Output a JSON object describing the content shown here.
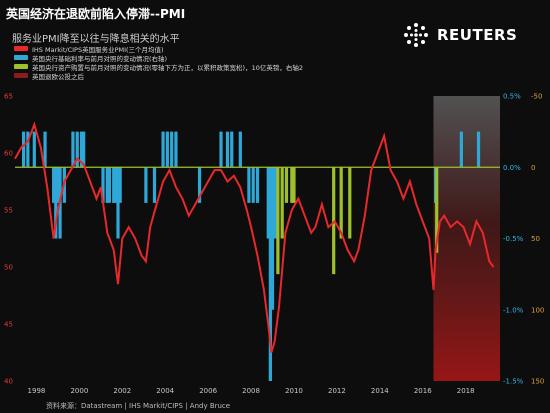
{
  "header": {
    "title": "英国经济在退欧前陷入停滞--PMI",
    "subtitle": "服务业PMI降至以往与降息相关的水平"
  },
  "brand": {
    "name": "REUTERS"
  },
  "legend": [
    {
      "label": "IHS Markit/CIPS英国服务业PMI(三个月均值)",
      "color": "#e8282b"
    },
    {
      "label": "英国央行基础利率与前月对照的变动情况(右轴)",
      "color": "#2fa8d8"
    },
    {
      "label": "英国央行资产购置与前月对照的变动情况(零轴下方为正，以累积政策宽松)，10亿英镑，右轴2",
      "color": "#9ec02a"
    },
    {
      "label": "英国退欧公投之后",
      "color": "#8a1c1c"
    }
  ],
  "source": "资料来源：Datastream | IHS Markit/CIPS | Andy Bruce",
  "chart_data": {
    "type": "line",
    "x_ticks": [
      "1998",
      "2000",
      "2002",
      "2004",
      "2006",
      "2008",
      "2010",
      "2012",
      "2014",
      "2016",
      "2018"
    ],
    "y_left_ticks": [
      "65",
      "60",
      "55",
      "50",
      "45",
      "40"
    ],
    "y_left_range": [
      40,
      65
    ],
    "y_right1_ticks": [
      "0.5%",
      "0.0%",
      "-0.5%",
      "-1.0%",
      "-1.5%"
    ],
    "y_right1_range": [
      -1.5,
      0.5
    ],
    "y_right2_ticks": [
      "-50",
      "0",
      "50",
      "100",
      "150"
    ],
    "y_right2_range": [
      -50,
      150
    ],
    "x_range": [
      1997,
      2019.6
    ],
    "shade_from": 2016.5,
    "series": [
      {
        "name": "IHS Markit/CIPS英国服务业PMI(三个月均值)",
        "axis": "left",
        "color": "#e8282b",
        "x": [
          1997.0,
          1997.3,
          1997.6,
          1997.9,
          1998.2,
          1998.5,
          1998.8,
          1999.0,
          1999.3,
          1999.6,
          1999.9,
          2000.2,
          2000.5,
          2000.8,
          2001.0,
          2001.3,
          2001.6,
          2001.8,
          2002.0,
          2002.3,
          2002.6,
          2002.9,
          2003.1,
          2003.3,
          2003.6,
          2003.9,
          2004.2,
          2004.5,
          2004.8,
          2005.1,
          2005.4,
          2005.7,
          2006.0,
          2006.3,
          2006.6,
          2006.9,
          2007.2,
          2007.5,
          2007.8,
          2008.0,
          2008.3,
          2008.6,
          2008.8,
          2008.95,
          2009.1,
          2009.3,
          2009.6,
          2009.9,
          2010.2,
          2010.5,
          2010.8,
          2011.0,
          2011.3,
          2011.6,
          2011.9,
          2012.2,
          2012.5,
          2012.8,
          2013.0,
          2013.3,
          2013.6,
          2013.9,
          2014.2,
          2014.5,
          2014.8,
          2015.1,
          2015.4,
          2015.7,
          2016.0,
          2016.3,
          2016.5,
          2016.6,
          2016.8,
          2017.0,
          2017.3,
          2017.6,
          2017.9,
          2018.2,
          2018.5,
          2018.8,
          2019.1,
          2019.3
        ],
        "values": [
          59.5,
          60.5,
          61.0,
          62.5,
          60.5,
          57.0,
          52.5,
          55.0,
          57.5,
          58.5,
          59.5,
          59.0,
          57.5,
          56.0,
          57.0,
          53.0,
          51.5,
          48.5,
          52.5,
          53.5,
          52.5,
          51.0,
          50.5,
          53.5,
          55.5,
          57.5,
          58.5,
          57.0,
          56.0,
          54.5,
          55.5,
          56.5,
          57.5,
          58.5,
          58.5,
          57.5,
          58.0,
          57.0,
          55.0,
          53.5,
          51.0,
          48.0,
          45.0,
          42.5,
          43.5,
          46.5,
          53.0,
          55.0,
          56.0,
          54.5,
          53.0,
          53.5,
          55.5,
          53.5,
          54.0,
          53.0,
          51.5,
          50.5,
          51.5,
          54.5,
          58.5,
          60.0,
          61.5,
          58.5,
          57.5,
          56.0,
          57.5,
          55.5,
          54.0,
          52.5,
          48.0,
          51.5,
          54.0,
          54.5,
          53.5,
          54.0,
          53.5,
          52.0,
          54.0,
          53.0,
          50.5,
          50.0
        ]
      },
      {
        "name": "英国央行基础利率与前月对照的变动情况(右轴)",
        "axis": "right1",
        "color": "#2fa8d8",
        "bars": [
          [
            1997.4,
            0.25
          ],
          [
            1997.6,
            0.25
          ],
          [
            1997.9,
            0.25
          ],
          [
            1998.4,
            0.25
          ],
          [
            1998.8,
            -0.25
          ],
          [
            1998.9,
            -0.5
          ],
          [
            1999.0,
            -0.25
          ],
          [
            1999.1,
            -0.5
          ],
          [
            1999.3,
            -0.25
          ],
          [
            1999.7,
            0.25
          ],
          [
            1999.9,
            0.25
          ],
          [
            2000.1,
            0.25
          ],
          [
            2000.2,
            0.25
          ],
          [
            2001.1,
            -0.25
          ],
          [
            2001.3,
            -0.25
          ],
          [
            2001.4,
            -0.25
          ],
          [
            2001.6,
            -0.25
          ],
          [
            2001.7,
            -0.25
          ],
          [
            2001.8,
            -0.5
          ],
          [
            2001.9,
            -0.25
          ],
          [
            2003.1,
            -0.25
          ],
          [
            2003.5,
            -0.25
          ],
          [
            2003.9,
            0.25
          ],
          [
            2004.1,
            0.25
          ],
          [
            2004.3,
            0.25
          ],
          [
            2004.5,
            0.25
          ],
          [
            2005.6,
            -0.25
          ],
          [
            2006.6,
            0.25
          ],
          [
            2006.9,
            0.25
          ],
          [
            2007.1,
            0.25
          ],
          [
            2007.5,
            0.25
          ],
          [
            2007.9,
            -0.25
          ],
          [
            2008.1,
            -0.25
          ],
          [
            2008.3,
            -0.25
          ],
          [
            2008.8,
            -0.5
          ],
          [
            2008.9,
            -1.5
          ],
          [
            2009.0,
            -1.0
          ],
          [
            2009.1,
            -0.5
          ],
          [
            2009.2,
            -0.5
          ],
          [
            2016.6,
            -0.25
          ],
          [
            2017.8,
            0.25
          ],
          [
            2018.6,
            0.25
          ]
        ]
      },
      {
        "name": "英国央行资产购置与前月对照的变动情况(零轴下方为正，以累积政策宽松)，10亿英镑，右轴2",
        "axis": "right2",
        "color": "#9ec02a",
        "bars": [
          [
            2009.25,
            75
          ],
          [
            2009.45,
            50
          ],
          [
            2009.65,
            25
          ],
          [
            2009.9,
            25
          ],
          [
            2010.0,
            25
          ],
          [
            2011.85,
            75
          ],
          [
            2012.2,
            50
          ],
          [
            2012.6,
            50
          ],
          [
            2016.65,
            60
          ]
        ]
      }
    ]
  }
}
